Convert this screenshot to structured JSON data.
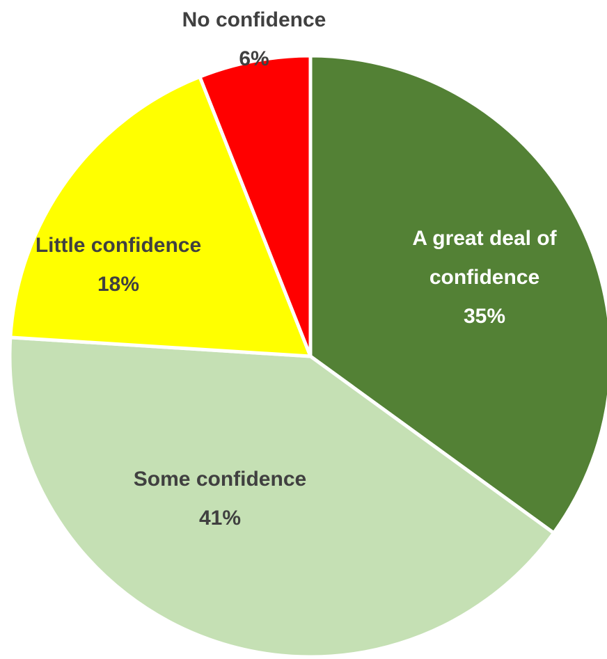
{
  "chart_data": {
    "type": "pie",
    "title": "",
    "slices": [
      {
        "label_lines": [
          "A great deal of",
          "confidence"
        ],
        "pct_label": "35%",
        "value": 35,
        "color": "#538135",
        "text_color": "#ffffff"
      },
      {
        "label_lines": [
          "Some confidence"
        ],
        "pct_label": "41%",
        "value": 41,
        "color": "#c5e0b4",
        "text_color": "#404040"
      },
      {
        "label_lines": [
          "Little confidence"
        ],
        "pct_label": "18%",
        "value": 18,
        "color": "#ffff00",
        "text_color": "#404040"
      },
      {
        "label_lines": [
          "No confidence"
        ],
        "pct_label": "6%",
        "value": 6,
        "color": "#ff0000",
        "text_color": "#404040"
      }
    ]
  }
}
